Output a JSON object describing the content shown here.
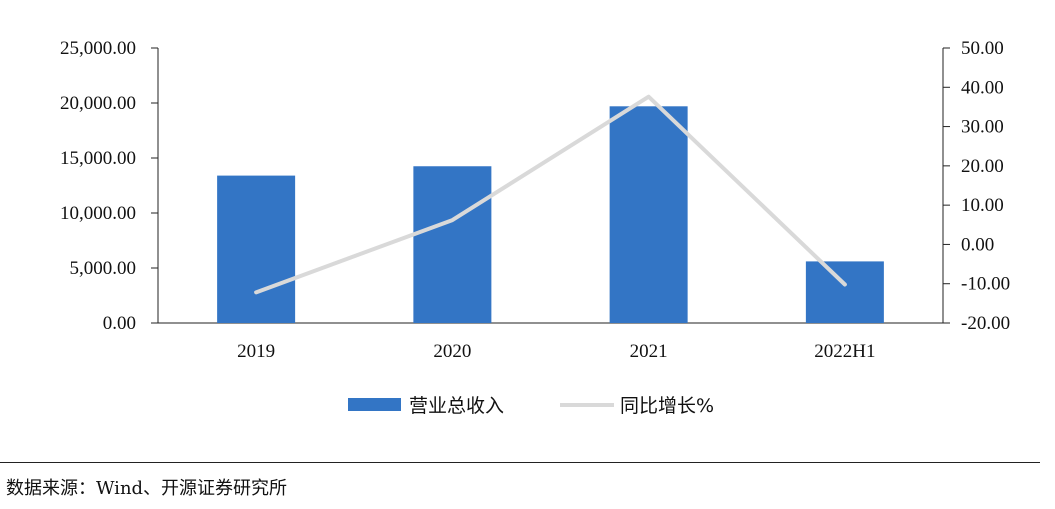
{
  "chart_data": {
    "type": "bar",
    "categories": [
      "2019",
      "2020",
      "2021",
      "2022H1"
    ],
    "series": [
      {
        "name": "营业总收入",
        "kind": "bar",
        "axis": "left",
        "color": "#3375C5",
        "values": [
          13400,
          14250,
          19700,
          5600
        ]
      },
      {
        "name": "同比增长%",
        "kind": "line",
        "axis": "right",
        "color": "#D9D9D9",
        "values": [
          -12.2,
          6.2,
          37.6,
          -10.2
        ]
      }
    ],
    "y_left": {
      "min": 0,
      "max": 25000,
      "step": 5000,
      "tick_labels": [
        "0.00",
        "5,000.00",
        "10,000.00",
        "15,000.00",
        "20,000.00",
        "25,000.00"
      ]
    },
    "y_right": {
      "min": -20,
      "max": 50,
      "step": 10,
      "tick_labels": [
        "-20.00",
        "-10.00",
        "0.00",
        "10.00",
        "20.00",
        "30.00",
        "40.00",
        "50.00"
      ]
    },
    "legend_position": "bottom",
    "grid": false
  },
  "source_text": "数据来源：Wind、开源证券研究所"
}
